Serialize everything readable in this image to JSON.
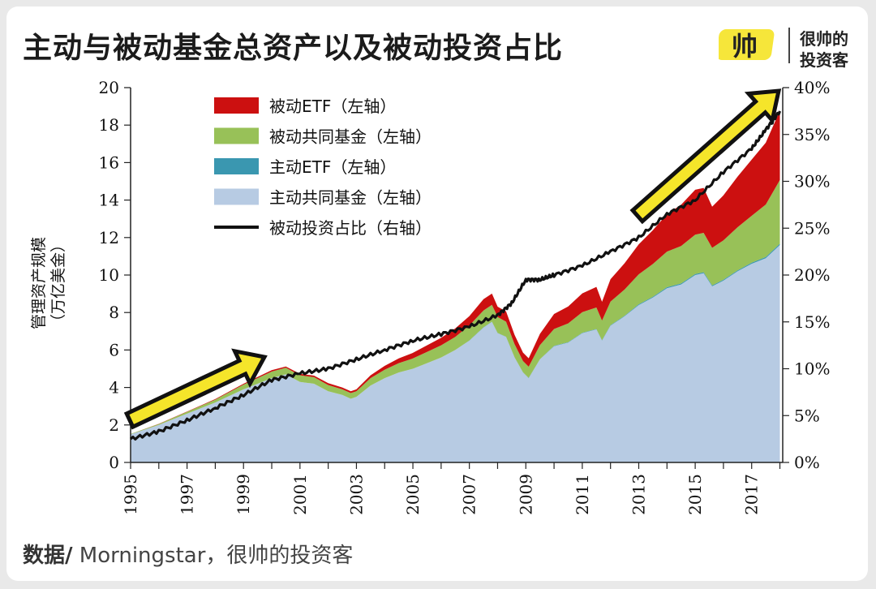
{
  "title": "主动与被动基金总资产以及被动投资占比",
  "logo": {
    "mark": "帅",
    "line1": "很帅的",
    "line2": "投资客"
  },
  "source": {
    "label": "数据/",
    "text": " Morningstar，很帅的投资客"
  },
  "colors": {
    "passive_etf": "#cc1010",
    "passive_mutual": "#98c158",
    "active_etf": "#3a97b0",
    "active_mutual": "#b7cbe3",
    "passive_share": "#111111",
    "arrow_fill": "#f5e52a",
    "arrow_stroke": "#111111"
  },
  "chart_data": {
    "type": "area",
    "ylabel": "管理资产规模（万亿美金）",
    "x_tick_labels": [
      "1995",
      "1997",
      "1999",
      "2001",
      "2003",
      "2005",
      "2007",
      "2009",
      "2011",
      "2013",
      "2015",
      "2017"
    ],
    "xlim": [
      1995,
      2018.1
    ],
    "ylim_left": [
      0,
      20
    ],
    "ylim_right": [
      0,
      0.4
    ],
    "y_tick_labels_left": [
      "0",
      "2",
      "4",
      "6",
      "8",
      "10",
      "12",
      "14",
      "16",
      "18",
      "20"
    ],
    "y_tick_labels_right": [
      "0%",
      "5%",
      "10%",
      "15%",
      "20%",
      "25%",
      "30%",
      "35%",
      "40%"
    ],
    "legend": {
      "placement": "top-left",
      "items": [
        "被动ETF（左轴）",
        "被动共同基金（左轴）",
        "主动ETF（左轴）",
        "主动共同基金（左轴）",
        "被动投资占比（右轴）"
      ]
    },
    "x": [
      1995.0,
      1996.0,
      1997.0,
      1998.0,
      1999.0,
      2000.0,
      2000.5,
      2001.0,
      2001.5,
      2002.0,
      2002.5,
      2002.8,
      2003.0,
      2003.5,
      2004.0,
      2004.5,
      2005.0,
      2005.5,
      2006.0,
      2006.5,
      2007.0,
      2007.5,
      2007.8,
      2008.0,
      2008.3,
      2008.6,
      2008.9,
      2009.1,
      2009.5,
      2010.0,
      2010.5,
      2011.0,
      2011.5,
      2011.7,
      2012.0,
      2012.5,
      2013.0,
      2013.5,
      2014.0,
      2014.5,
      2015.0,
      2015.3,
      2015.6,
      2016.0,
      2016.5,
      2017.0,
      2017.5,
      2018.0
    ],
    "series": [
      {
        "name": "主动共同基金（左轴）",
        "values": [
          1.5,
          2.0,
          2.6,
          3.2,
          3.9,
          4.5,
          4.7,
          4.3,
          4.2,
          3.8,
          3.6,
          3.4,
          3.5,
          4.1,
          4.5,
          4.8,
          5.0,
          5.3,
          5.6,
          6.0,
          6.5,
          7.2,
          7.5,
          6.9,
          6.7,
          5.6,
          4.8,
          4.5,
          5.5,
          6.2,
          6.4,
          6.9,
          7.1,
          6.5,
          7.3,
          7.8,
          8.4,
          8.8,
          9.3,
          9.5,
          10.0,
          10.1,
          9.4,
          9.7,
          10.2,
          10.6,
          10.9,
          11.6
        ]
      },
      {
        "name": "主动ETF（左轴）",
        "values": [
          0,
          0,
          0,
          0,
          0,
          0,
          0,
          0,
          0,
          0,
          0,
          0,
          0,
          0,
          0,
          0,
          0,
          0,
          0,
          0,
          0.01,
          0.01,
          0.01,
          0.01,
          0.01,
          0.01,
          0.01,
          0.01,
          0.01,
          0.02,
          0.02,
          0.02,
          0.02,
          0.02,
          0.03,
          0.03,
          0.04,
          0.04,
          0.05,
          0.05,
          0.05,
          0.05,
          0.05,
          0.05,
          0.05,
          0.06,
          0.06,
          0.07
        ]
      },
      {
        "name": "被动共同基金（左轴）",
        "values": [
          0.02,
          0.05,
          0.1,
          0.15,
          0.25,
          0.35,
          0.35,
          0.35,
          0.35,
          0.33,
          0.3,
          0.3,
          0.3,
          0.4,
          0.45,
          0.5,
          0.55,
          0.6,
          0.65,
          0.7,
          0.8,
          0.9,
          0.9,
          0.85,
          0.8,
          0.7,
          0.6,
          0.6,
          0.75,
          0.9,
          1.0,
          1.1,
          1.15,
          1.05,
          1.25,
          1.4,
          1.6,
          1.75,
          1.9,
          2.0,
          2.1,
          2.1,
          2.0,
          2.1,
          2.3,
          2.5,
          2.8,
          3.4
        ]
      },
      {
        "name": "被动ETF（左轴）",
        "values": [
          0,
          0.01,
          0.02,
          0.03,
          0.05,
          0.07,
          0.07,
          0.08,
          0.08,
          0.1,
          0.1,
          0.1,
          0.1,
          0.15,
          0.2,
          0.25,
          0.3,
          0.35,
          0.4,
          0.45,
          0.5,
          0.6,
          0.6,
          0.55,
          0.55,
          0.5,
          0.45,
          0.45,
          0.6,
          0.8,
          0.9,
          1.0,
          1.1,
          1.0,
          1.2,
          1.4,
          1.6,
          1.8,
          2.0,
          2.2,
          2.4,
          2.4,
          2.2,
          2.4,
          2.7,
          3.0,
          3.3,
          3.7
        ]
      },
      {
        "name": "被动投资占比（右轴）",
        "axis": "right",
        "x": [
          1995.0,
          1996.0,
          1997.0,
          1998.0,
          1999.0,
          2000.0,
          2001.0,
          2002.0,
          2003.0,
          2004.0,
          2005.0,
          2006.0,
          2007.0,
          2008.0,
          2008.5,
          2009.0,
          2009.5,
          2010.0,
          2011.0,
          2012.0,
          2013.0,
          2014.0,
          2015.0,
          2016.0,
          2017.0,
          2017.5,
          2018.0
        ],
        "values": [
          0.025,
          0.033,
          0.045,
          0.058,
          0.072,
          0.088,
          0.095,
          0.1,
          0.11,
          0.12,
          0.13,
          0.137,
          0.145,
          0.157,
          0.17,
          0.195,
          0.195,
          0.2,
          0.21,
          0.225,
          0.24,
          0.265,
          0.28,
          0.31,
          0.335,
          0.355,
          0.375
        ]
      }
    ]
  }
}
